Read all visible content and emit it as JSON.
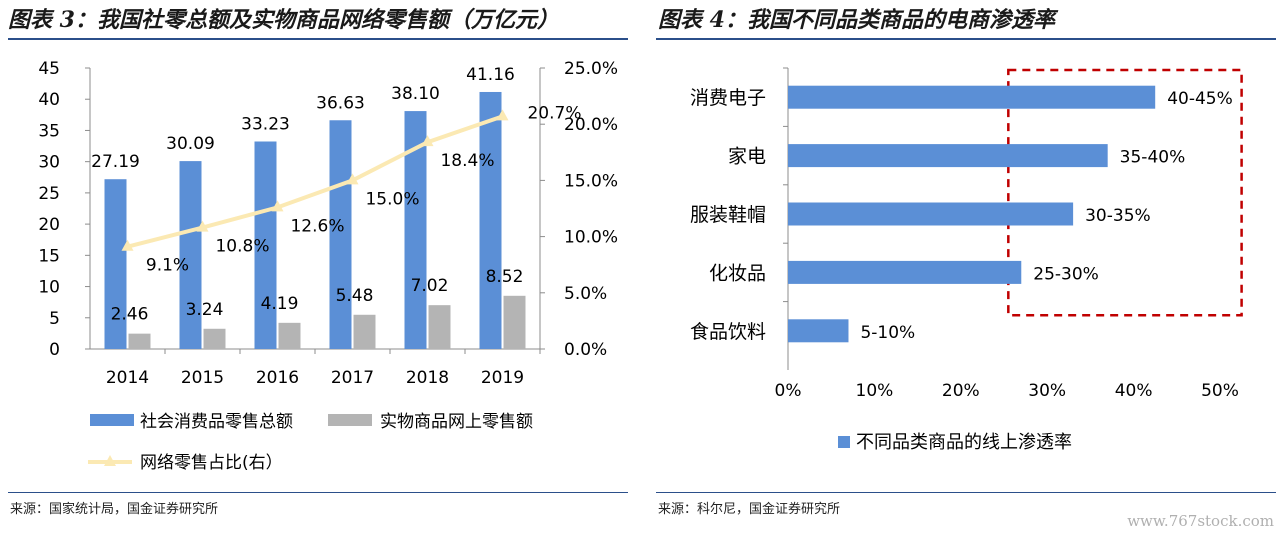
{
  "left": {
    "title": "图表 3：我国社零总额及实物商品网络零售额（万亿元）",
    "source": "来源：国家统计局，国金证券研究所"
  },
  "right": {
    "title": "图表 4：我国不同品类商品的电商渗透率",
    "source": "来源：科尔尼，国金证券研究所"
  },
  "watermark": "www.767stock.com",
  "chart_data": [
    {
      "type": "bar",
      "categories": [
        "2014",
        "2015",
        "2016",
        "2017",
        "2018",
        "2019"
      ],
      "series": [
        {
          "name": "社会消费品零售总额",
          "kind": "bar",
          "axis": "left",
          "color": "#5b8fd6",
          "values": [
            27.19,
            30.09,
            33.23,
            36.63,
            38.1,
            41.16
          ],
          "labels": [
            "27.19",
            "30.09",
            "33.23",
            "36.63",
            "38.10",
            "41.16"
          ]
        },
        {
          "name": "实物商品网上零售额",
          "kind": "bar",
          "axis": "left",
          "color": "#b4b4b4",
          "values": [
            2.46,
            3.24,
            4.19,
            5.48,
            7.02,
            8.52
          ],
          "labels": [
            "2.46",
            "3.24",
            "4.19",
            "5.48",
            "7.02",
            "8.52"
          ]
        },
        {
          "name": "网络零售占比(右）",
          "kind": "line",
          "axis": "right",
          "color": "#fbe9b3",
          "values": [
            9.1,
            10.8,
            12.6,
            15.0,
            18.4,
            20.7
          ],
          "labels": [
            "9.1%",
            "10.8%",
            "12.6%",
            "15.0%",
            "18.4%",
            "20.7%"
          ]
        }
      ],
      "ylim_left": [
        0,
        45
      ],
      "yticks_left": [
        "0",
        "5",
        "10",
        "15",
        "20",
        "25",
        "30",
        "35",
        "40",
        "45"
      ],
      "ylim_right": [
        0,
        25
      ],
      "yticks_right": [
        "0.0%",
        "5.0%",
        "10.0%",
        "15.0%",
        "20.0%",
        "25.0%"
      ],
      "grid": false,
      "legend_position": "bottom"
    },
    {
      "type": "bar",
      "orientation": "horizontal",
      "categories": [
        "消费电子",
        "家电",
        "服装鞋帽",
        "化妆品",
        "食品饮料"
      ],
      "series": [
        {
          "name": "不同品类商品的线上渗透率",
          "color": "#5b8fd6",
          "values": [
            42.5,
            37,
            33,
            27,
            7
          ],
          "labels": [
            "40-45%",
            "35-40%",
            "30-35%",
            "25-30%",
            "5-10%"
          ]
        }
      ],
      "xlim": [
        0,
        50
      ],
      "xticks": [
        "0%",
        "10%",
        "20%",
        "30%",
        "40%",
        "50%"
      ],
      "highlight_box": {
        "style": "dashed",
        "color": "#c00000",
        "covers": [
          "消费电子",
          "家电",
          "服装鞋帽",
          "化妆品"
        ]
      },
      "legend_position": "bottom"
    }
  ]
}
